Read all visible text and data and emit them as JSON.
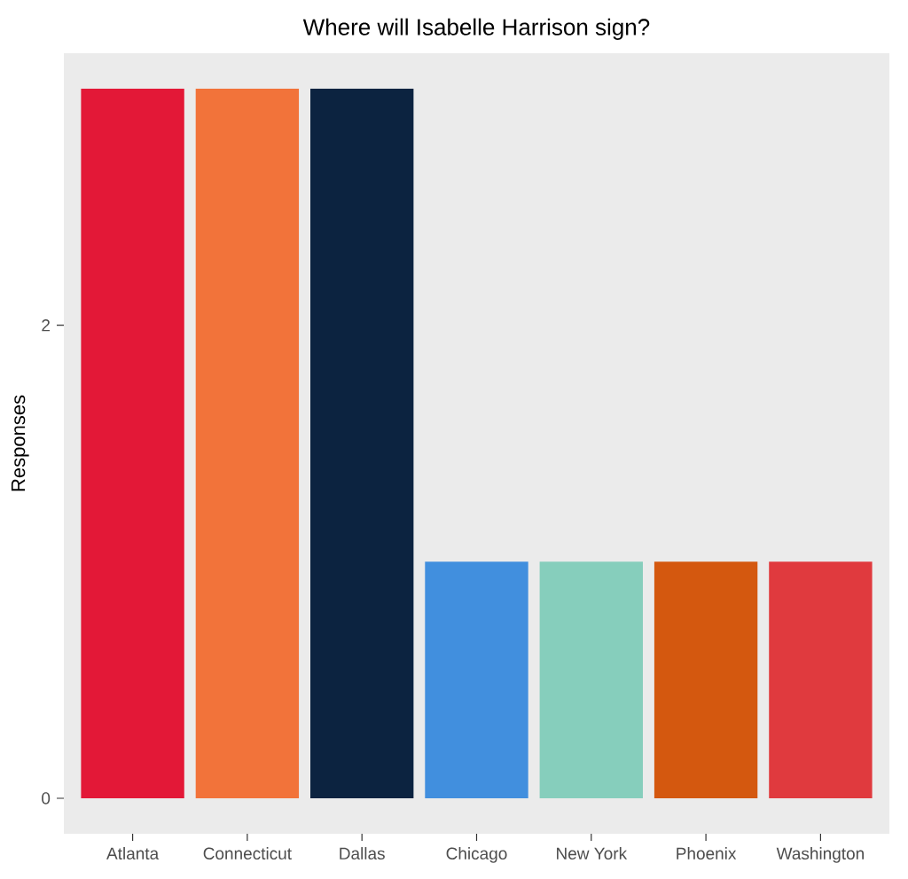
{
  "chart_data": {
    "type": "bar",
    "title": "Where will Isabelle Harrison sign?",
    "ylabel": "Responses",
    "categories": [
      "Atlanta",
      "Connecticut",
      "Dallas",
      "Chicago",
      "New York",
      "Phoenix",
      "Washington"
    ],
    "values": [
      3,
      3,
      3,
      1,
      1,
      1,
      1
    ],
    "colors": [
      "#e31837",
      "#f2733a",
      "#0c2340",
      "#418fde",
      "#86cebc",
      "#d4580f",
      "#e03a3e"
    ],
    "ylim": [
      -0.15,
      3.15
    ],
    "yticks": [
      0,
      2
    ],
    "grid": false
  }
}
